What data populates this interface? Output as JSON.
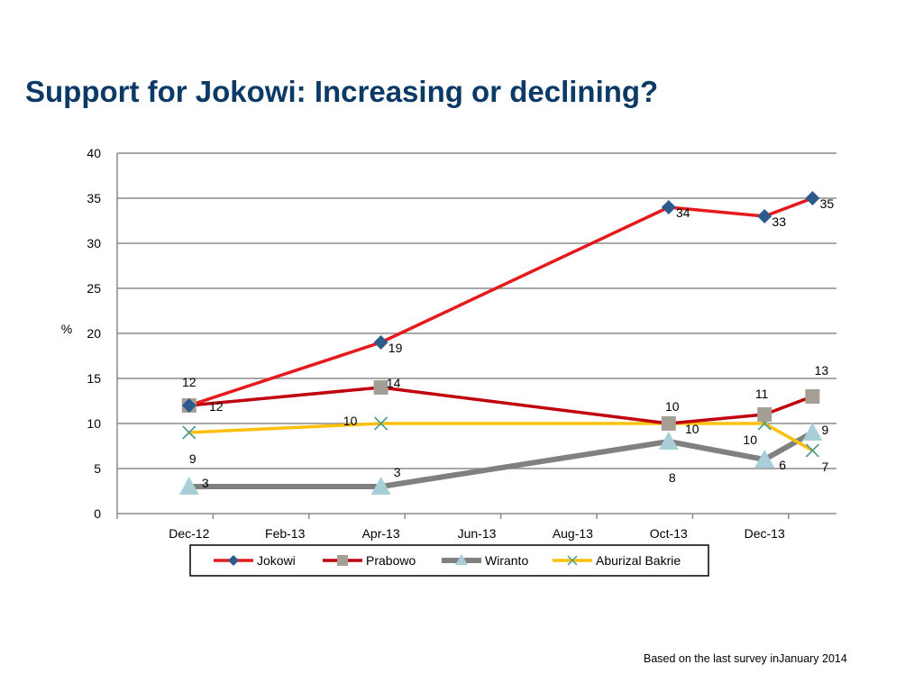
{
  "title": "Support for Jokowi: Increasing or declining?",
  "footnote": "Based on the last survey inJanuary 2014",
  "chart_data": {
    "type": "line",
    "ylabel": "%",
    "ylim": [
      0,
      40
    ],
    "yticks": [
      "0",
      "5",
      "10",
      "15",
      "20",
      "25",
      "30",
      "35",
      "40"
    ],
    "xlim": [
      "Dec-12",
      "Feb-14"
    ],
    "xtick_labels": [
      "Dec-12",
      "Feb-13",
      "Apr-13",
      "Jun-13",
      "Aug-13",
      "Oct-13",
      "Dec-13"
    ],
    "grid": true,
    "legend_position": "bottom",
    "series": [
      {
        "name": "Jokowi",
        "color": "#e41a1c",
        "marker": "diamond",
        "marker_color": "#2f5b8c",
        "points": [
          {
            "x": "Dec-12",
            "y": 12
          },
          {
            "x": "Apr-13",
            "y": 19
          },
          {
            "x": "Oct-13",
            "y": 34
          },
          {
            "x": "Dec-13",
            "y": 33
          },
          {
            "x": "Jan-14",
            "y": 35
          }
        ],
        "labels": [
          "",
          "19",
          "34",
          "33",
          "35"
        ]
      },
      {
        "name": "Prabowo",
        "color": "#c0000c",
        "marker": "square",
        "marker_color": "#a59e95",
        "points": [
          {
            "x": "Dec-12",
            "y": 12
          },
          {
            "x": "Apr-13",
            "y": 14
          },
          {
            "x": "Oct-13",
            "y": 10
          },
          {
            "x": "Dec-13",
            "y": 11
          },
          {
            "x": "Jan-14",
            "y": 13
          }
        ],
        "labels": [
          "12",
          "14",
          "10",
          "11",
          "13"
        ]
      },
      {
        "name": "Wiranto",
        "color": "#808080",
        "marker": "triangle",
        "marker_color": "#a8cfd8",
        "points": [
          {
            "x": "Dec-12",
            "y": 3
          },
          {
            "x": "Apr-13",
            "y": 3
          },
          {
            "x": "Oct-13",
            "y": 8
          },
          {
            "x": "Dec-13",
            "y": 6
          },
          {
            "x": "Jan-14",
            "y": 9
          }
        ],
        "labels": [
          "3",
          "3",
          "8",
          "6",
          "9"
        ]
      },
      {
        "name": "Aburizal Bakrie",
        "color": "#fcc00c",
        "marker": "x",
        "marker_color": "#4d9a93",
        "points": [
          {
            "x": "Dec-12",
            "y": 9
          },
          {
            "x": "Apr-13",
            "y": 10
          },
          {
            "x": "Oct-13",
            "y": 10
          },
          {
            "x": "Dec-13",
            "y": 10
          },
          {
            "x": "Jan-14",
            "y": 7
          }
        ],
        "labels": [
          "9",
          "10",
          "10",
          "10",
          "7"
        ]
      }
    ],
    "extra_labels": [
      {
        "series": "Jokowi",
        "x": "Dec-12",
        "text": "12"
      }
    ]
  }
}
